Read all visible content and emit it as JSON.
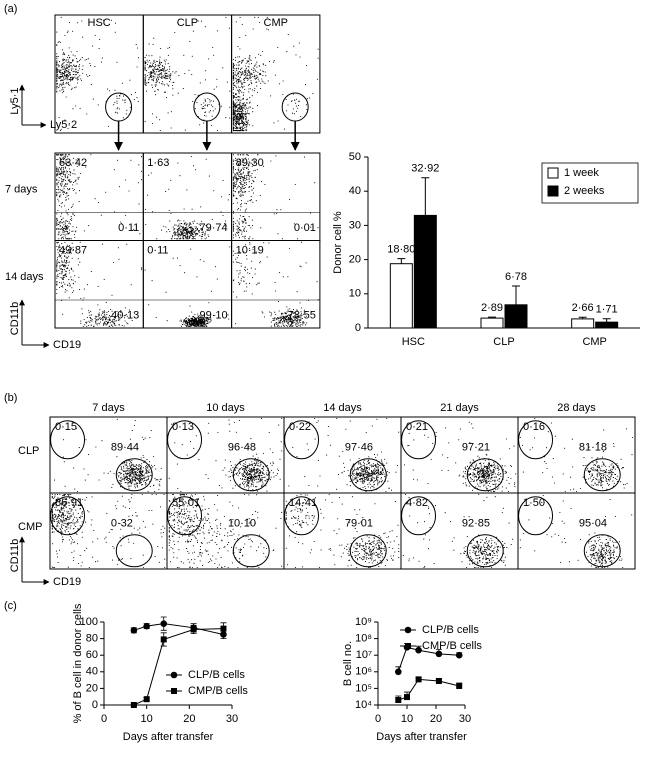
{
  "panel_labels": [
    "(a)",
    "(b)",
    "(c)"
  ],
  "a_top": {
    "columns": [
      "HSC",
      "CLP",
      "CMP"
    ],
    "y_label": "Ly5·1",
    "x_label": "Ly5·2"
  },
  "a_grid": {
    "y_label": "CD11b",
    "x_label": "CD19",
    "rows": [
      {
        "label": "7 days",
        "cells": [
          [
            "63·42",
            "0·11"
          ],
          [
            "1·63",
            "79·74"
          ],
          [
            "89·30",
            "0·01"
          ]
        ]
      },
      {
        "label": "14 days",
        "cells": [
          [
            "49·87",
            "40·13"
          ],
          [
            "0·11",
            "99·10"
          ],
          [
            "10·19",
            "78·55"
          ]
        ]
      }
    ]
  },
  "b_grid": {
    "y_label": "CD11b",
    "x_label": "CD19",
    "columns": [
      "7 days",
      "10 days",
      "14 days",
      "21 days",
      "28 days"
    ],
    "rows": [
      {
        "label": "CLP",
        "cells": [
          [
            "0·15",
            "89·44"
          ],
          [
            "0·13",
            "96·48"
          ],
          [
            "0·22",
            "97·46"
          ],
          [
            "0·21",
            "97·21"
          ],
          [
            "0·16",
            "81·18"
          ]
        ]
      },
      {
        "label": "CMP",
        "cells": [
          [
            "86·91",
            "0·32"
          ],
          [
            "55·01",
            "10·10"
          ],
          [
            "14·41",
            "79·01"
          ],
          [
            "4·82",
            "92·85"
          ],
          [
            "1·50",
            "95·04"
          ]
        ]
      }
    ]
  },
  "chart_data": [
    {
      "type": "bar",
      "y_label": "Donor cell %",
      "categories": [
        "HSC",
        "CLP",
        "CMP"
      ],
      "ylim": [
        0,
        50
      ],
      "yticks": [
        0,
        10,
        20,
        30,
        40,
        50
      ],
      "legend": "top-right",
      "series": [
        {
          "name": "1 week",
          "color": "#ffffff",
          "values": [
            18.8,
            2.89,
            2.66
          ],
          "errors": [
            1.5,
            0.3,
            0.5
          ],
          "value_labels": [
            "18·80",
            "2·89",
            "2·66"
          ]
        },
        {
          "name": "2 weeks",
          "color": "#000000",
          "values": [
            32.92,
            6.78,
            1.71
          ],
          "errors": [
            11,
            5.5,
            1
          ],
          "value_labels": [
            "32·92",
            "6·78",
            "1·71"
          ]
        }
      ]
    },
    {
      "type": "line",
      "x_label": "Days after transfer",
      "y_label": "% of B cell in donor cells",
      "x": [
        7,
        10,
        14,
        21,
        28
      ],
      "xlim": [
        0,
        30
      ],
      "xticks": [
        0,
        10,
        20,
        30
      ],
      "ylim": [
        0,
        100
      ],
      "yticks": [
        0,
        20,
        40,
        60,
        80,
        100
      ],
      "legend": "bottom-right",
      "series": [
        {
          "name": "CLP/B cells",
          "marker": "circle",
          "color": "#000000",
          "values": [
            90,
            95,
            98,
            93,
            85
          ],
          "errors": [
            3,
            3,
            8,
            5,
            5
          ]
        },
        {
          "name": "CMP/B cells",
          "marker": "square",
          "color": "#000000",
          "values": [
            0,
            7,
            79,
            91,
            92
          ],
          "errors": [
            1,
            2,
            8,
            5,
            7
          ]
        }
      ]
    },
    {
      "type": "line",
      "x_label": "Days after transfer",
      "y_label": "B cell no.",
      "log_scale": true,
      "x": [
        7,
        10,
        14,
        21,
        28
      ],
      "xlim": [
        0,
        30
      ],
      "xticks": [
        0,
        10,
        20,
        30
      ],
      "ylim": [
        10000,
        1000000000
      ],
      "yticks": [
        {
          "value": 10000,
          "label": "10⁴"
        },
        {
          "value": 100000,
          "label": "10⁵"
        },
        {
          "value": 1000000,
          "label": "10⁶"
        },
        {
          "value": 10000000,
          "label": "10⁷"
        },
        {
          "value": 100000000,
          "label": "10⁸"
        },
        {
          "value": 1000000000,
          "label": "10⁹"
        }
      ],
      "legend": "top-right",
      "series": [
        {
          "name": "CLP/B cells",
          "marker": "circle",
          "color": "#000000",
          "values": [
            1000000,
            30000000,
            20000000,
            12000000,
            10000000
          ],
          "errors": [
            1000000,
            20000000,
            15000000,
            10000000,
            4000000
          ]
        },
        {
          "name": "CMP/B cells",
          "marker": "square",
          "color": "#000000",
          "values": [
            20000,
            30000,
            350000,
            280000,
            140000
          ],
          "errors": [
            15000,
            30000,
            100000,
            80000,
            70000
          ]
        }
      ]
    }
  ]
}
